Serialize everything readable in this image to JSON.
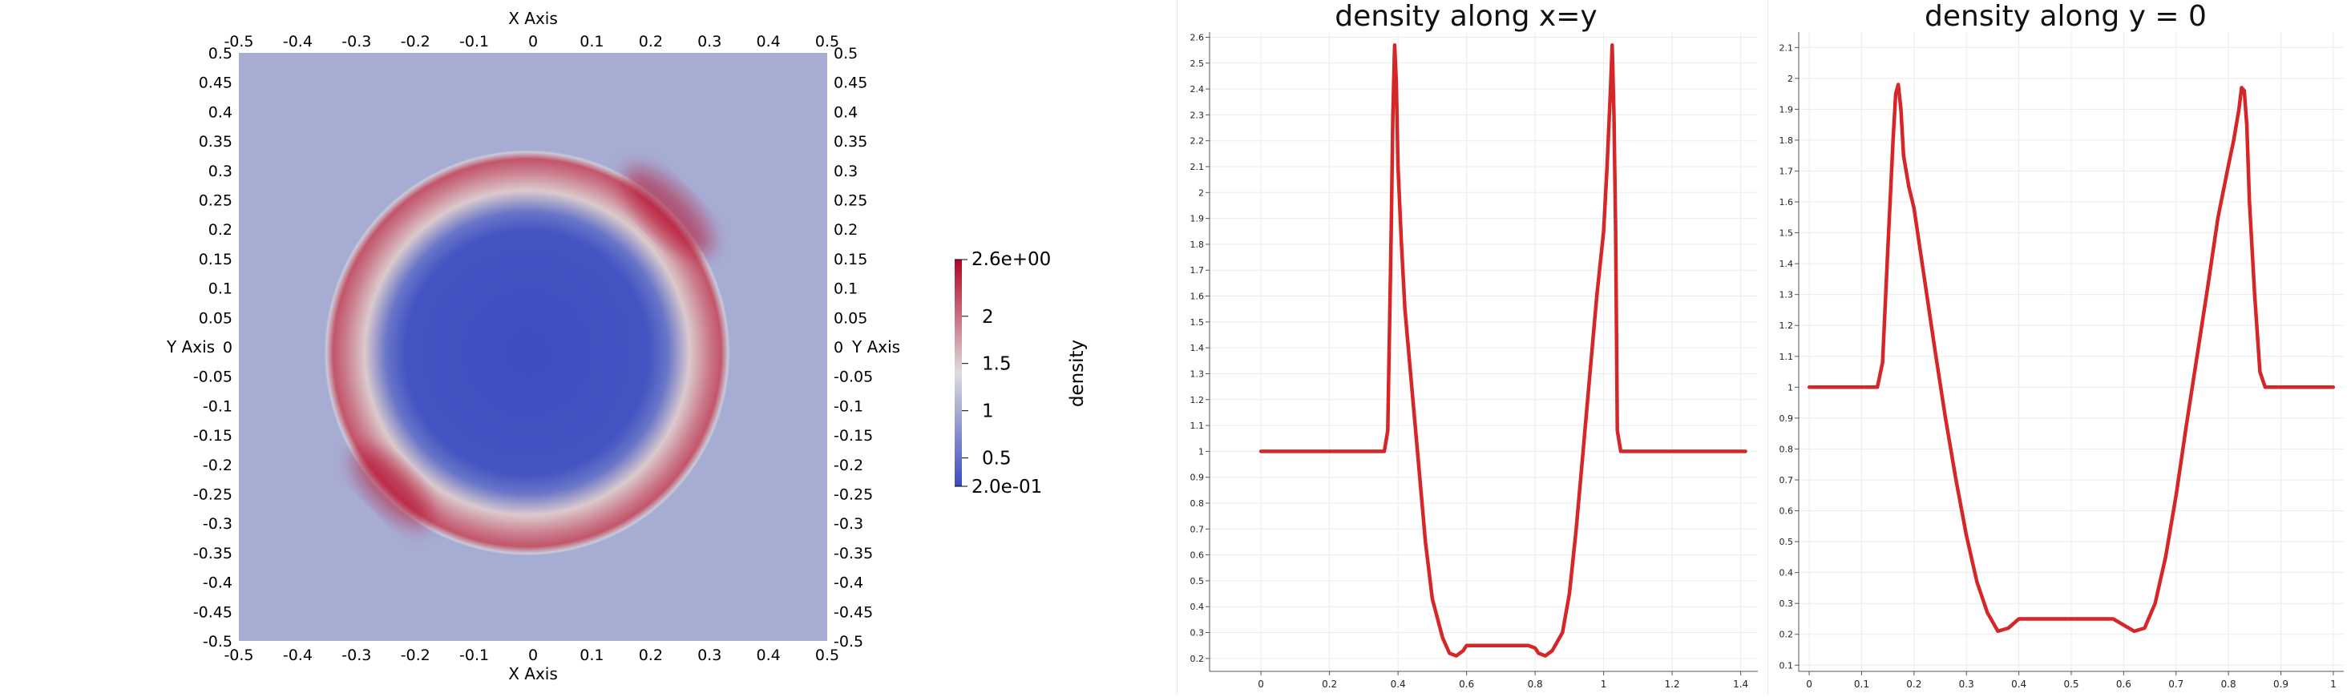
{
  "chart_data": [
    {
      "type": "heatmap",
      "field": "density",
      "x_axis": {
        "label": "X Axis",
        "range": [
          -0.5,
          0.5
        ],
        "ticks": [
          "-0.5",
          "-0.4",
          "-0.3",
          "-0.2",
          "-0.1",
          "0",
          "0.1",
          "0.2",
          "0.3",
          "0.4",
          "0.5"
        ]
      },
      "y_axis": {
        "label": "Y Axis",
        "range": [
          -0.5,
          0.5
        ],
        "ticks": [
          "0.5",
          "0.45",
          "0.4",
          "0.35",
          "0.3",
          "0.25",
          "0.2",
          "0.15",
          "0.1",
          "0.05",
          "0",
          "-0.05",
          "-0.1",
          "-0.15",
          "-0.2",
          "-0.25",
          "-0.3",
          "-0.35",
          "-0.4",
          "-0.45",
          "-0.5"
        ]
      },
      "colorbar": {
        "title": "density",
        "range": [
          0.2,
          2.6
        ],
        "max_label": "2.6e+00",
        "min_label": "2.0e-01",
        "ticks": [
          {
            "value": 2,
            "label": "2"
          },
          {
            "value": 1.5,
            "label": "1.5"
          },
          {
            "value": 1,
            "label": "1"
          },
          {
            "value": 0.5,
            "label": "0.5"
          }
        ],
        "colors": [
          "#3b4cc0",
          "#dddcdc",
          "#b40426"
        ]
      },
      "features": {
        "background_density": 1.0,
        "shell_center": [
          -0.01,
          -0.01
        ],
        "shell_outer_radius": 0.345,
        "shell_inner_radius": 0.24,
        "shell_peak_density": 2.6,
        "interior_density": 0.22
      }
    },
    {
      "type": "line",
      "title": "density along x=y",
      "xlim": [
        -0.15,
        1.45
      ],
      "ylim": [
        0.15,
        2.62
      ],
      "x_ticks": [
        "0",
        "0.2",
        "0.4",
        "0.6",
        "0.8",
        "1",
        "1.2",
        "1.4"
      ],
      "y_ticks": [
        "0.2",
        "0.3",
        "0.4",
        "0.5",
        "0.6",
        "0.7",
        "0.8",
        "0.9",
        "1",
        "1.1",
        "1.2",
        "1.3",
        "1.4",
        "1.5",
        "1.6",
        "1.7",
        "1.8",
        "1.9",
        "2",
        "2.1",
        "2.2",
        "2.3",
        "2.4",
        "2.5",
        "2.6"
      ],
      "color": "#d62728",
      "series": [
        {
          "x": [
            0,
            0.36,
            0.37,
            0.38,
            0.385,
            0.39,
            0.395,
            0.4,
            0.41,
            0.42,
            0.44,
            0.46,
            0.48,
            0.5,
            0.53,
            0.55,
            0.57,
            0.59,
            0.6,
            0.63,
            0.68,
            0.73,
            0.78,
            0.8,
            0.81,
            0.83,
            0.85,
            0.88,
            0.9,
            0.92,
            0.94,
            0.96,
            0.98,
            1.0,
            1.01,
            1.02,
            1.025,
            1.03,
            1.035,
            1.04,
            1.05,
            1.06,
            1.414
          ],
          "y": [
            1.0,
            1.0,
            1.08,
            1.85,
            2.3,
            2.57,
            2.42,
            2.1,
            1.8,
            1.55,
            1.25,
            0.95,
            0.65,
            0.43,
            0.28,
            0.22,
            0.21,
            0.23,
            0.25,
            0.25,
            0.25,
            0.25,
            0.25,
            0.24,
            0.22,
            0.21,
            0.23,
            0.3,
            0.45,
            0.7,
            1.0,
            1.3,
            1.6,
            1.85,
            2.1,
            2.4,
            2.57,
            2.3,
            1.85,
            1.08,
            1.0,
            1.0,
            1.0
          ]
        }
      ]
    },
    {
      "type": "line",
      "title": "density along y = 0",
      "xlim": [
        -0.02,
        1.02
      ],
      "ylim": [
        0.08,
        2.15
      ],
      "x_ticks": [
        "0",
        "0.1",
        "0.2",
        "0.3",
        "0.4",
        "0.5",
        "0.6",
        "0.7",
        "0.8",
        "0.9",
        "1"
      ],
      "y_ticks": [
        "0.1",
        "0.2",
        "0.3",
        "0.4",
        "0.5",
        "0.6",
        "0.7",
        "0.8",
        "0.9",
        "1",
        "1.1",
        "1.2",
        "1.3",
        "1.4",
        "1.5",
        "1.6",
        "1.7",
        "1.8",
        "1.9",
        "2",
        "2.1"
      ],
      "color": "#d62728",
      "series": [
        {
          "x": [
            0,
            0.13,
            0.14,
            0.15,
            0.16,
            0.165,
            0.17,
            0.175,
            0.18,
            0.19,
            0.2,
            0.22,
            0.24,
            0.26,
            0.28,
            0.3,
            0.32,
            0.34,
            0.36,
            0.38,
            0.4,
            0.42,
            0.45,
            0.5,
            0.55,
            0.58,
            0.6,
            0.62,
            0.64,
            0.66,
            0.68,
            0.7,
            0.72,
            0.74,
            0.76,
            0.78,
            0.8,
            0.81,
            0.82,
            0.825,
            0.83,
            0.835,
            0.84,
            0.85,
            0.86,
            0.87,
            1.0
          ],
          "y": [
            1.0,
            1.0,
            1.08,
            1.45,
            1.8,
            1.95,
            1.98,
            1.9,
            1.75,
            1.65,
            1.58,
            1.35,
            1.12,
            0.9,
            0.7,
            0.52,
            0.37,
            0.27,
            0.21,
            0.22,
            0.25,
            0.25,
            0.25,
            0.25,
            0.25,
            0.25,
            0.23,
            0.21,
            0.22,
            0.3,
            0.45,
            0.65,
            0.88,
            1.1,
            1.32,
            1.55,
            1.72,
            1.8,
            1.9,
            1.97,
            1.96,
            1.85,
            1.6,
            1.3,
            1.05,
            1.0,
            1.0
          ]
        }
      ]
    }
  ]
}
